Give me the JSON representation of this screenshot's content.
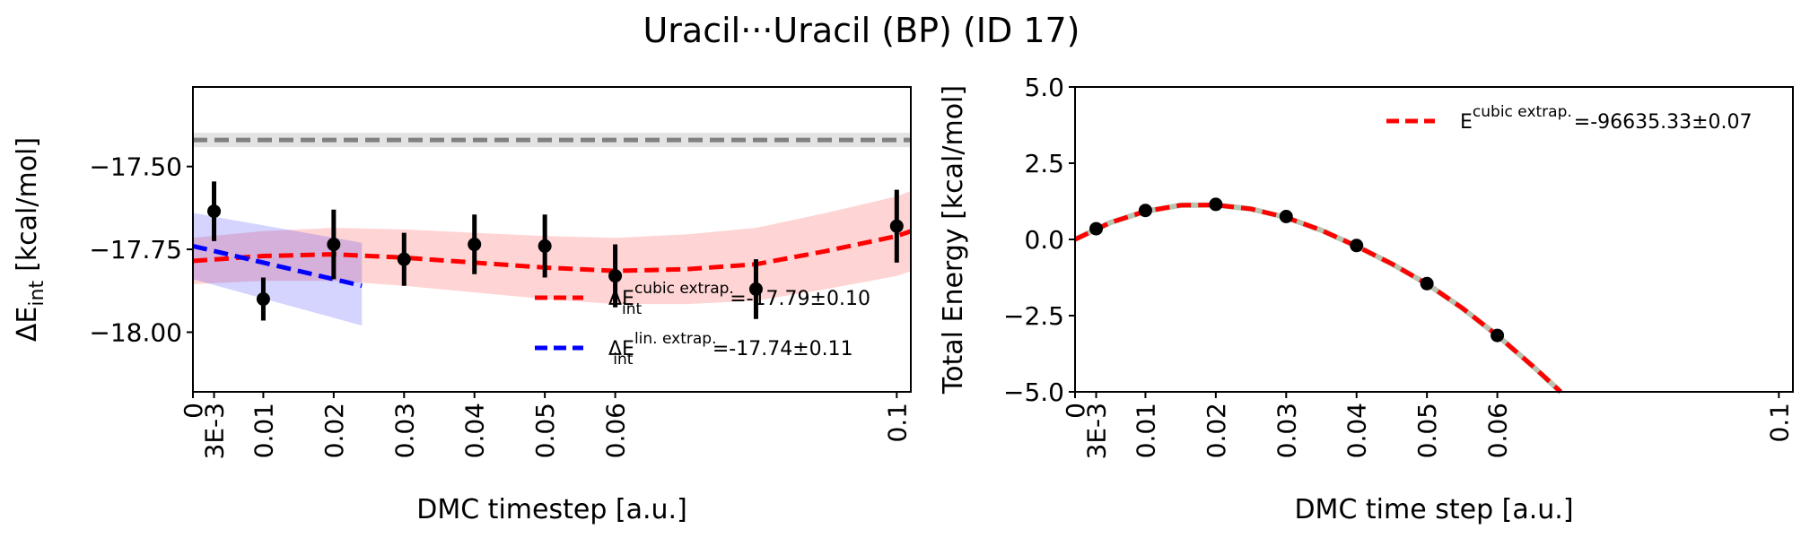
{
  "figure": {
    "title": "Uracil···Uracil (BP) (ID 17)"
  },
  "chart_data": [
    {
      "type": "scatter",
      "xlabel": "DMC timestep [a.u.]",
      "ylabel": "ΔE_int [kcal/mol]",
      "ylabel_main": "ΔE",
      "ylabel_sub": "int",
      "ylabel_unit": "[kcal/mol]",
      "xlim": [
        0,
        0.102
      ],
      "ylim": [
        -18.18,
        -17.26
      ],
      "grid": false,
      "legend_position": "lower-right",
      "xtick_labels": [
        {
          "value": 0,
          "label": "0"
        },
        {
          "value": 0.003,
          "label": "3E-3"
        },
        {
          "value": 0.01,
          "label": "0.01"
        },
        {
          "value": 0.02,
          "label": "0.02"
        },
        {
          "value": 0.03,
          "label": "0.03"
        },
        {
          "value": 0.04,
          "label": "0.04"
        },
        {
          "value": 0.05,
          "label": "0.05"
        },
        {
          "value": 0.06,
          "label": "0.06"
        },
        {
          "value": 0.1,
          "label": "0.1"
        }
      ],
      "ytick_labels": [
        {
          "value": -17.5,
          "label": "−17.50"
        },
        {
          "value": -17.75,
          "label": "−17.75"
        },
        {
          "value": -18.0,
          "label": "−18.00"
        }
      ],
      "reference_value": -17.42,
      "points": [
        {
          "x": 0.003,
          "y": -17.635,
          "err": 0.09
        },
        {
          "x": 0.01,
          "y": -17.9,
          "err": 0.065
        },
        {
          "x": 0.02,
          "y": -17.735,
          "err": 0.105
        },
        {
          "x": 0.03,
          "y": -17.78,
          "err": 0.08
        },
        {
          "x": 0.04,
          "y": -17.735,
          "err": 0.09
        },
        {
          "x": 0.05,
          "y": -17.74,
          "err": 0.095
        },
        {
          "x": 0.06,
          "y": -17.83,
          "err": 0.095
        },
        {
          "x": 0.08,
          "y": -17.87,
          "err": 0.09
        },
        {
          "x": 0.1,
          "y": -17.68,
          "err": 0.11
        }
      ],
      "cubic_fit": {
        "x": [
          0,
          0.01,
          0.02,
          0.03,
          0.04,
          0.05,
          0.06,
          0.07,
          0.08,
          0.09,
          0.1,
          0.102
        ],
        "y": [
          -17.785,
          -17.77,
          -17.765,
          -17.775,
          -17.79,
          -17.805,
          -17.815,
          -17.81,
          -17.795,
          -17.755,
          -17.71,
          -17.695
        ],
        "band": 0.1,
        "color": "#ff0000"
      },
      "lin_fit": {
        "x": [
          0,
          0.024
        ],
        "y": [
          -17.74,
          -17.86
        ],
        "band_low": [
          -17.84,
          -17.98
        ],
        "band_high": [
          -17.64,
          -17.73
        ],
        "color": "#0000ff"
      },
      "legend": [
        {
          "label_main": "ΔE",
          "label_sup": "cubic extrap.",
          "label_sub": "int",
          "value": "=-17.79±0.10",
          "color": "#ff0000"
        },
        {
          "label_main": "ΔE",
          "label_sup": "lin. extrap.",
          "label_sub": "int",
          "value": "=-17.74±0.11",
          "color": "#0000ff"
        }
      ]
    },
    {
      "type": "scatter",
      "xlabel": "DMC time step [a.u.]",
      "ylabel": "Total Energy [kcal/mol]",
      "xlim": [
        0,
        0.102
      ],
      "ylim": [
        -5.0,
        5.0
      ],
      "grid": false,
      "legend_position": "top-right",
      "xtick_labels": [
        {
          "value": 0,
          "label": "0"
        },
        {
          "value": 0.003,
          "label": "3E-3"
        },
        {
          "value": 0.01,
          "label": "0.01"
        },
        {
          "value": 0.02,
          "label": "0.02"
        },
        {
          "value": 0.03,
          "label": "0.03"
        },
        {
          "value": 0.04,
          "label": "0.04"
        },
        {
          "value": 0.05,
          "label": "0.05"
        },
        {
          "value": 0.06,
          "label": "0.06"
        },
        {
          "value": 0.1,
          "label": "0.1"
        }
      ],
      "ytick_labels": [
        {
          "value": 5.0,
          "label": "5.0"
        },
        {
          "value": 2.5,
          "label": "2.5"
        },
        {
          "value": 0.0,
          "label": "0.0"
        },
        {
          "value": -2.5,
          "label": "−2.5"
        },
        {
          "value": -5.0,
          "label": "−5.0"
        }
      ],
      "points": [
        {
          "x": 0.003,
          "y": 0.35
        },
        {
          "x": 0.01,
          "y": 0.95
        },
        {
          "x": 0.02,
          "y": 1.15
        },
        {
          "x": 0.03,
          "y": 0.75
        },
        {
          "x": 0.04,
          "y": -0.2
        },
        {
          "x": 0.05,
          "y": -1.45
        },
        {
          "x": 0.06,
          "y": -3.15
        }
      ],
      "cubic_fit": {
        "x": [
          0,
          0.005,
          0.01,
          0.015,
          0.02,
          0.025,
          0.03,
          0.035,
          0.04,
          0.045,
          0.05,
          0.055,
          0.06,
          0.065,
          0.069
        ],
        "y": [
          0.0,
          0.55,
          0.92,
          1.12,
          1.13,
          1.0,
          0.72,
          0.3,
          -0.22,
          -0.8,
          -1.46,
          -2.25,
          -3.15,
          -4.15,
          -5.0
        ],
        "color": "#ff0000"
      },
      "legend": [
        {
          "label_main": "E",
          "label_sup": "cubic extrap.",
          "value": "=-96635.33±0.07",
          "color": "#ff0000"
        }
      ]
    }
  ]
}
